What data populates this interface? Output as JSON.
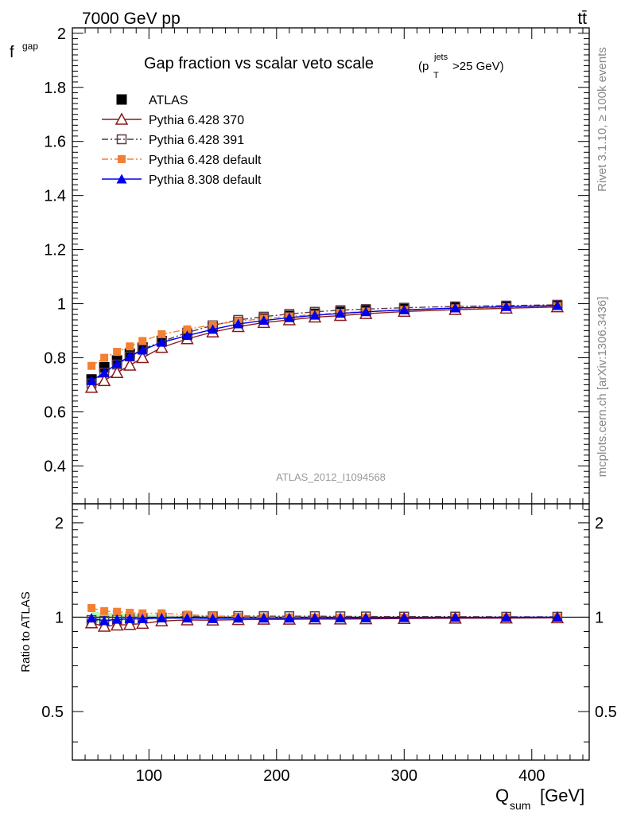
{
  "header": {
    "energy_label": "7000 GeV pp",
    "process_label": "tt̄",
    "title_main": "Gap fraction vs scalar veto scale",
    "title_cut_open": "(p",
    "title_cut_sup": "jets",
    "title_cut_sub": "T",
    "title_cut_close": ">25 GeV)"
  },
  "side_text": {
    "rivet": "Rivet 3.1.10, ≥ 100k events",
    "mcplots": "mcplots.cern.ch [arXiv:1306.3436]"
  },
  "watermark": "ATLAS_2012_I1094568",
  "axes": {
    "ylabel_main": "f",
    "ylabel_main_sub": "gap",
    "ylabel_ratio": "Ratio to ATLAS",
    "xlabel": "Q",
    "xlabel_sub": "sum",
    "xlabel_unit": "[GeV]"
  },
  "chart_data": {
    "type": "scatter",
    "x": [
      55,
      65,
      75,
      85,
      95,
      110,
      130,
      150,
      170,
      190,
      210,
      230,
      250,
      270,
      300,
      340,
      380,
      420
    ],
    "xlim": [
      40,
      445
    ],
    "ylim": [
      0.26,
      2.02
    ],
    "ratio_ylim": [
      0.35,
      2.3
    ],
    "xticks": [
      100,
      200,
      300,
      400
    ],
    "yticks": [
      0.4,
      0.6,
      0.8,
      1,
      1.2,
      1.4,
      1.6,
      1.8,
      2
    ],
    "ratio_yticks": [
      0.5,
      1,
      2
    ],
    "series": [
      {
        "name": "ATLAS",
        "color": "#000000",
        "marker": "square-filled",
        "line": "none",
        "values": [
          0.72,
          0.765,
          0.79,
          0.815,
          0.838,
          0.862,
          0.888,
          0.915,
          0.932,
          0.945,
          0.955,
          0.963,
          0.97,
          0.975,
          0.981,
          0.986,
          0.99,
          0.993
        ]
      },
      {
        "name": "Pythia 6.428 370",
        "color": "#8b1a1a",
        "marker": "triangle-open",
        "line": "solid",
        "values": [
          0.69,
          0.715,
          0.745,
          0.772,
          0.8,
          0.838,
          0.87,
          0.895,
          0.915,
          0.93,
          0.94,
          0.95,
          0.956,
          0.963,
          0.971,
          0.978,
          0.983,
          0.988
        ]
      },
      {
        "name": "Pythia 6.428 391",
        "color": "#5a3a4a",
        "marker": "square-open",
        "line": "dashdot",
        "values": [
          0.705,
          0.745,
          0.775,
          0.805,
          0.832,
          0.86,
          0.893,
          0.92,
          0.94,
          0.952,
          0.962,
          0.97,
          0.976,
          0.98,
          0.985,
          0.99,
          0.993,
          0.996
        ]
      },
      {
        "name": "Pythia 6.428 default",
        "color": "#f28032",
        "marker": "square-filled-small",
        "line": "dashdot",
        "values": [
          0.77,
          0.8,
          0.822,
          0.842,
          0.862,
          0.887,
          0.905,
          0.922,
          0.935,
          0.945,
          0.953,
          0.96,
          0.966,
          0.971,
          0.977,
          0.983,
          0.987,
          0.991
        ]
      },
      {
        "name": "Pythia 8.308 default",
        "color": "#0000ee",
        "marker": "triangle-filled",
        "line": "solid",
        "values": [
          0.715,
          0.745,
          0.778,
          0.805,
          0.828,
          0.857,
          0.882,
          0.905,
          0.925,
          0.938,
          0.948,
          0.957,
          0.964,
          0.97,
          0.977,
          0.984,
          0.989,
          0.993
        ]
      }
    ],
    "legend_position": "top-left"
  }
}
